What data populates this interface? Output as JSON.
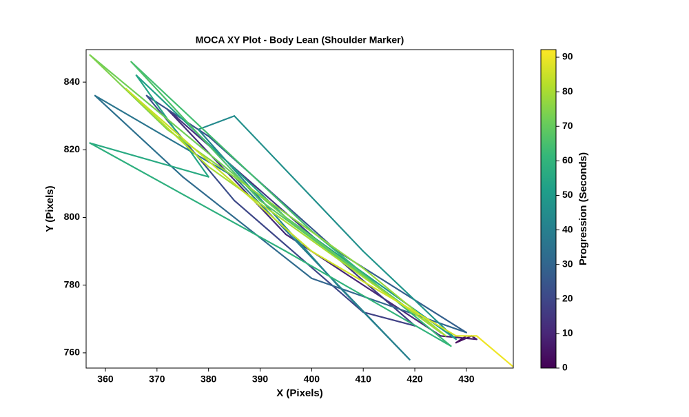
{
  "chart_data": {
    "type": "trajectory",
    "title": "MOCA XY Plot - Body Lean (Shoulder Marker)",
    "xlabel": "X (Pixels)",
    "ylabel": "Y (Pixels)",
    "colorbar_label": "Progression (Seconds)",
    "x": [
      430,
      429,
      428,
      431,
      432,
      425,
      395,
      372,
      390,
      420,
      410,
      385,
      368,
      380,
      405,
      430,
      400,
      375,
      358,
      385,
      419,
      405,
      378,
      385,
      410,
      428,
      395,
      366,
      380,
      357,
      395,
      427,
      400,
      365,
      390,
      425,
      395,
      357,
      372,
      410,
      426,
      380,
      364,
      400,
      428,
      432,
      439
    ],
    "y": [
      765,
      764,
      763,
      765,
      764,
      765,
      795,
      832,
      808,
      768,
      772,
      805,
      836,
      824,
      790,
      766,
      782,
      812,
      836,
      812,
      758,
      780,
      826,
      830,
      790,
      764,
      800,
      842,
      812,
      822,
      790,
      762,
      796,
      846,
      805,
      766,
      800,
      848,
      826,
      785,
      765,
      815,
      838,
      790,
      765,
      765,
      756
    ],
    "t": [
      0,
      2,
      4,
      6,
      8,
      10,
      12,
      14,
      16,
      18,
      20,
      22,
      24,
      26,
      28,
      30,
      32,
      34,
      36,
      38,
      40,
      42,
      44,
      46,
      48,
      50,
      52,
      54,
      56,
      58,
      60,
      62,
      64,
      66,
      68,
      70,
      72,
      74,
      76,
      78,
      80,
      82,
      84,
      86,
      88,
      90,
      92
    ],
    "colormap": [
      "#440154",
      "#482878",
      "#3e4989",
      "#31688e",
      "#26828e",
      "#1f9e89",
      "#35b779",
      "#6ece58",
      "#b5de2b",
      "#fde725"
    ],
    "xlim": [
      356.26,
      439.1
    ],
    "ylim": [
      755.5,
      849.6
    ],
    "clim": [
      0,
      92.2
    ],
    "xticks": [
      360,
      370,
      380,
      390,
      400,
      410,
      420,
      430
    ],
    "yticks": [
      760,
      780,
      800,
      820,
      840
    ],
    "cticks": [
      0,
      10,
      20,
      30,
      40,
      50,
      60,
      70,
      80,
      90
    ]
  }
}
